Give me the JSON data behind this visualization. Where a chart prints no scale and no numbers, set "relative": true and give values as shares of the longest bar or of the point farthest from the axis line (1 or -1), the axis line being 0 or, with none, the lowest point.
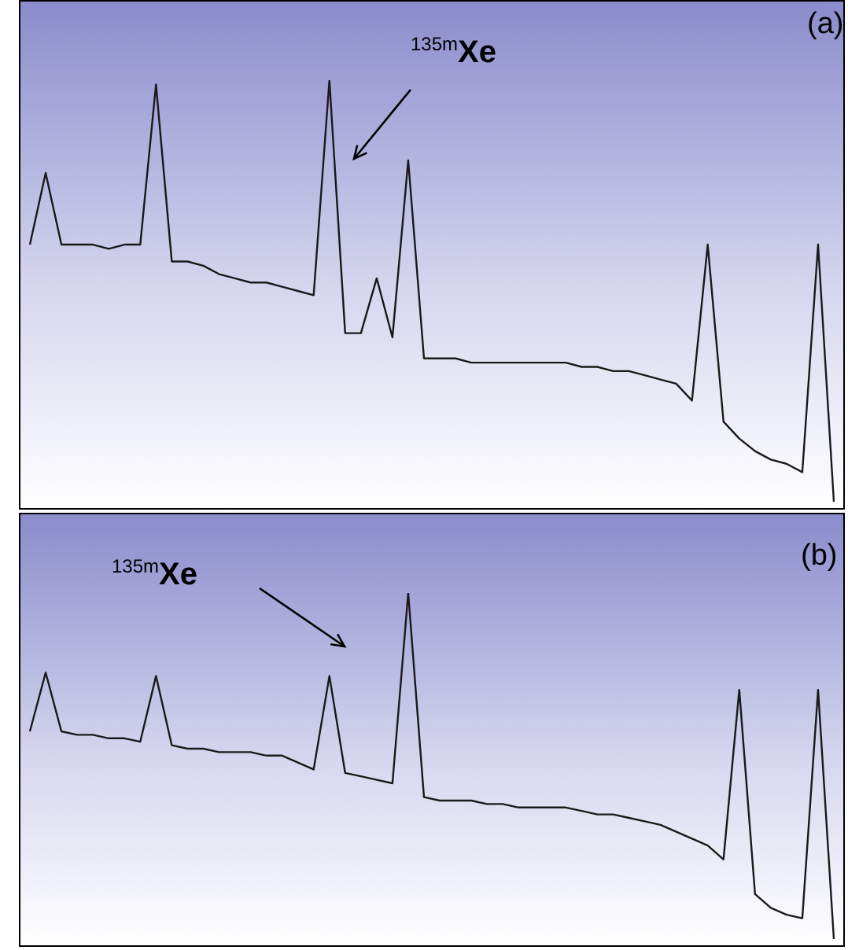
{
  "chart_data": [
    {
      "type": "line",
      "relative": true,
      "annotations": [
        "(a)",
        "$^{135m}$Xe"
      ],
      "categories": [
        null,
        null,
        null,
        null,
        null,
        null,
        null,
        null,
        null,
        null,
        null,
        null,
        null,
        null,
        null,
        null,
        null,
        null,
        null,
        null,
        null,
        null,
        null,
        null,
        null,
        null,
        null,
        null,
        null,
        null,
        null,
        null,
        null,
        null,
        null,
        null,
        null,
        null,
        null,
        null,
        null,
        null,
        null,
        null,
        null,
        null,
        null,
        null,
        null,
        null,
        null,
        null
      ],
      "series": [
        {
          "color": "#1a1a1a",
          "values": [
            0.61,
            0.78,
            0.61,
            0.61,
            0.61,
            0.6,
            0.61,
            0.61,
            0.99,
            0.57,
            0.57,
            0.56,
            0.54,
            0.53,
            0.52,
            0.52,
            0.51,
            0.5,
            0.49,
            1.0,
            0.4,
            0.4,
            0.53,
            0.39,
            0.81,
            0.34,
            0.34,
            0.34,
            0.33,
            0.33,
            0.33,
            0.33,
            0.33,
            0.33,
            0.33,
            0.32,
            0.32,
            0.31,
            0.31,
            0.3,
            0.29,
            0.28,
            0.24,
            0.61,
            0.19,
            0.15,
            0.12,
            0.1,
            0.09,
            0.07,
            0.61,
            0
          ]
        }
      ]
    },
    {
      "type": "line",
      "relative": true,
      "annotations": [
        "(b)",
        "$^{135m}$Xe"
      ],
      "categories": [
        null,
        null,
        null,
        null,
        null,
        null,
        null,
        null,
        null,
        null,
        null,
        null,
        null,
        null,
        null,
        null,
        null,
        null,
        null,
        null,
        null,
        null,
        null,
        null,
        null,
        null,
        null,
        null,
        null,
        null,
        null,
        null,
        null,
        null,
        null,
        null,
        null,
        null,
        null,
        null,
        null,
        null,
        null,
        null,
        null,
        null,
        null,
        null,
        null,
        null,
        null,
        null
      ],
      "series": [
        {
          "color": "#1a1a1a",
          "values": [
            0.6,
            0.77,
            0.6,
            0.59,
            0.59,
            0.58,
            0.58,
            0.57,
            0.76,
            0.56,
            0.55,
            0.55,
            0.54,
            0.54,
            0.54,
            0.53,
            0.53,
            0.51,
            0.49,
            0.76,
            0.48,
            0.47,
            0.46,
            0.45,
            1.0,
            0.41,
            0.4,
            0.4,
            0.4,
            0.39,
            0.39,
            0.38,
            0.38,
            0.38,
            0.38,
            0.37,
            0.36,
            0.36,
            0.35,
            0.34,
            0.33,
            0.31,
            0.29,
            0.27,
            0.23,
            0.72,
            0.13,
            0.09,
            0.07,
            0.06,
            0.72,
            0
          ]
        }
      ]
    }
  ]
}
